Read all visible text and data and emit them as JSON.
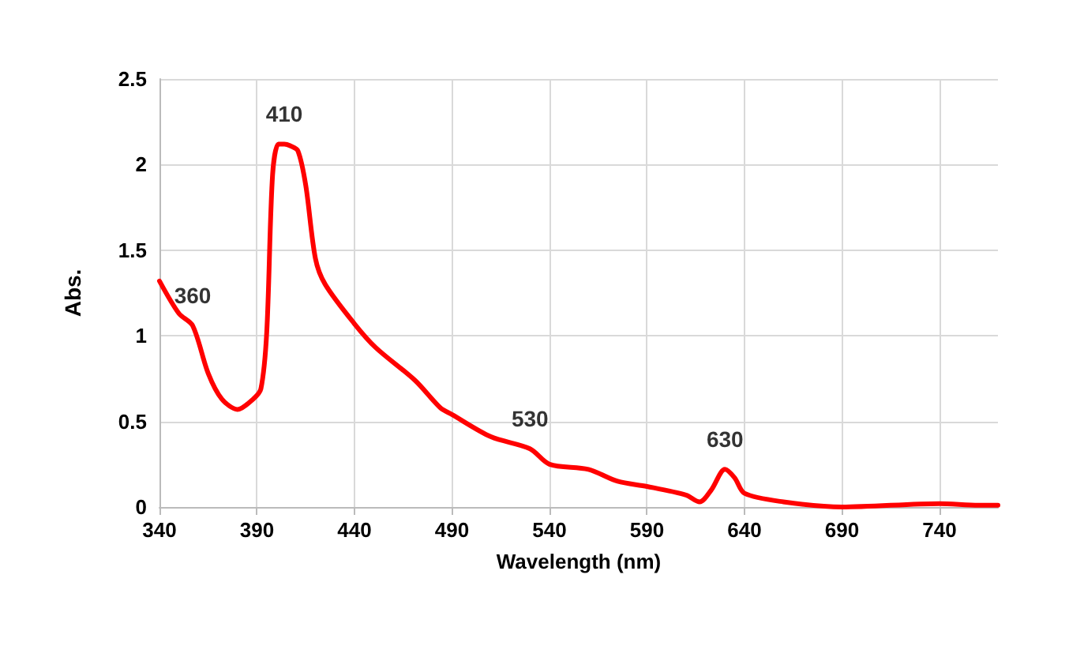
{
  "chart_data": {
    "type": "line",
    "xlabel": "Wavelength (nm)",
    "ylabel": "Abs.",
    "x": [
      340,
      350,
      357,
      365,
      372,
      380,
      388,
      392,
      395,
      398,
      401,
      404,
      407,
      411,
      415,
      420,
      425,
      440,
      451,
      471,
      484,
      490,
      510,
      530,
      540,
      560,
      575,
      590,
      610,
      617,
      623,
      630,
      635,
      640,
      660,
      690,
      740,
      760,
      770
    ],
    "series": [
      {
        "color": "#ff0000",
        "values": [
          1.32,
          1.13,
          1.06,
          0.78,
          0.63,
          0.57,
          0.63,
          0.69,
          1.02,
          1.94,
          2.12,
          2.12,
          2.11,
          2.08,
          1.88,
          1.45,
          1.3,
          1.07,
          0.93,
          0.74,
          0.58,
          0.54,
          0.41,
          0.34,
          0.25,
          0.22,
          0.15,
          0.12,
          0.07,
          0.03,
          0.1,
          0.22,
          0.17,
          0.08,
          0.03,
          0.0,
          0.02,
          0.01,
          0.01
        ]
      }
    ],
    "annotations": [
      {
        "text": "360",
        "x": 357,
        "y": 1.06
      },
      {
        "text": "410",
        "x": 404,
        "y": 2.12
      },
      {
        "text": "530",
        "x": 530,
        "y": 0.34
      },
      {
        "text": "630",
        "x": 630,
        "y": 0.22
      }
    ],
    "xlim": [
      340,
      770
    ],
    "xticks": [
      340,
      390,
      440,
      490,
      540,
      590,
      640,
      690,
      740
    ],
    "ylim": [
      0,
      2.5
    ],
    "yticks": [
      0,
      0.5,
      1,
      1.5,
      2,
      2.5
    ],
    "grid": true,
    "marker": "none",
    "line_style": "solid"
  }
}
